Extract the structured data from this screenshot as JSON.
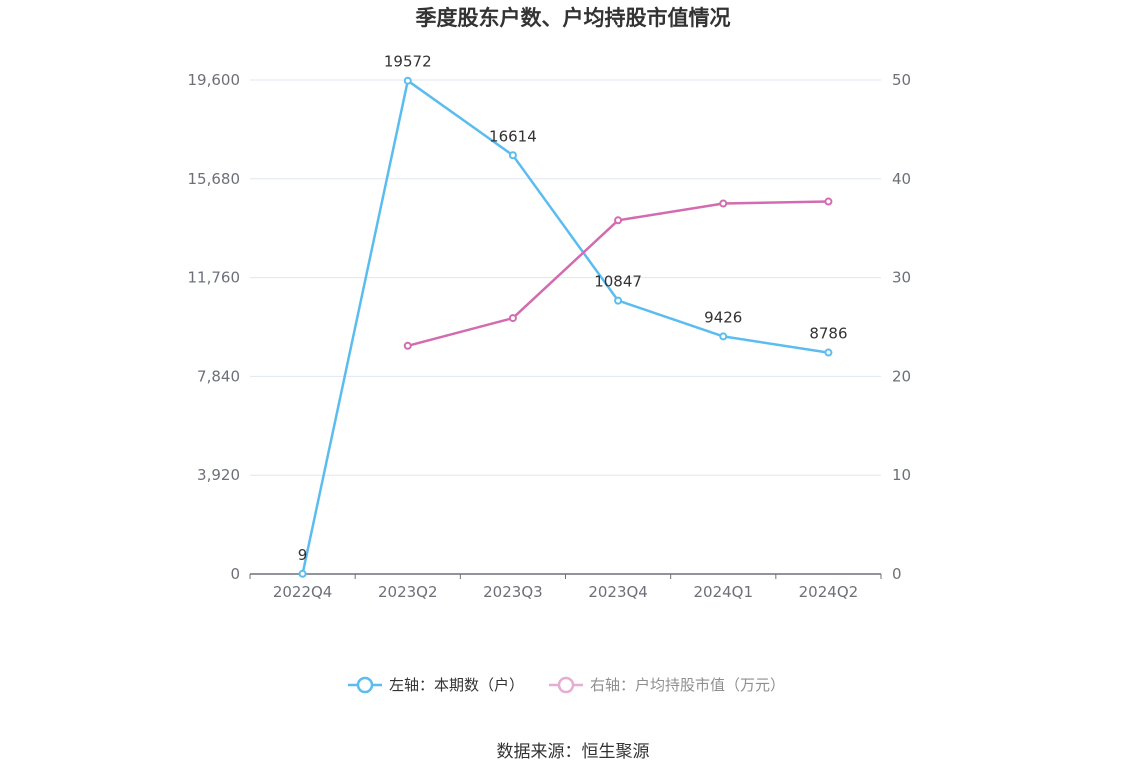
{
  "chart_data": {
    "type": "line",
    "title": "季度股东户数、户均持股市值情况",
    "categories": [
      "2022Q4",
      "2023Q2",
      "2023Q3",
      "2023Q4",
      "2024Q1",
      "2024Q2"
    ],
    "left_axis": {
      "ticks": [
        "0",
        "3,920",
        "7,840",
        "11,760",
        "15,680",
        "19,600"
      ],
      "ylim": [
        0,
        19600
      ]
    },
    "right_axis": {
      "ticks": [
        "0",
        "10",
        "20",
        "30",
        "40",
        "50"
      ],
      "ylim": [
        0,
        50
      ]
    },
    "series": [
      {
        "name": "左轴：本期数（户）",
        "axis": "left",
        "color": "#5bbcf0",
        "values": [
          9,
          19572,
          16614,
          10847,
          9426,
          8786
        ],
        "labels": [
          "9",
          "19572",
          "16614",
          "10847",
          "9426",
          "8786"
        ]
      },
      {
        "name": "右轴：户均持股市值（万元）",
        "axis": "right",
        "color": "#d36bb0",
        "values": [
          null,
          23.1,
          25.9,
          35.8,
          37.5,
          37.7
        ]
      }
    ],
    "grid": true,
    "legend_position": "bottom"
  },
  "source": "数据来源：恒生聚源"
}
